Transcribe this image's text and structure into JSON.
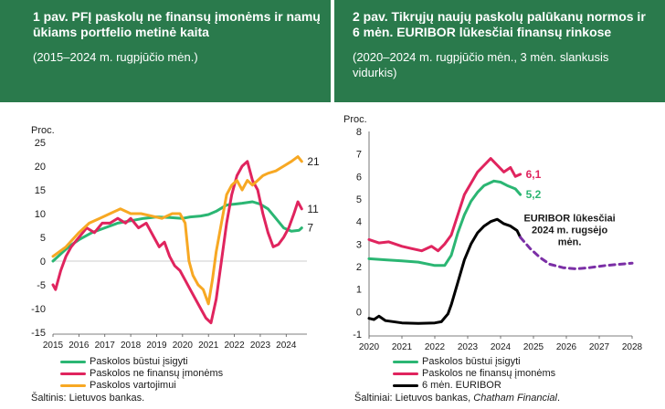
{
  "left_panel": {
    "title": "1 pav. PFĮ paskolų ne finansų įmonėms ir namų ūkiams portfelio metinė kaita",
    "subtitle": "(2015–2024 m. rugpjūčio mėn.)",
    "source": "Šaltinis: Lietuvos bankas."
  },
  "right_panel": {
    "title": "2 pav. Tikrųjų naujų paskolų palūkanų normos ir 6 mėn. EURIBOR lūkesčiai finansų rinkose",
    "subtitle": "(2020–2024 m. rugpjūčio mėn., 3 mėn. slankusis vidurkis)",
    "source_prefix": "Šaltiniai: Lietuvos bankas, ",
    "source_italic": "Chatham Financial",
    "source_suffix": "."
  },
  "chart_data": [
    {
      "type": "line",
      "ylabel": "Proc.",
      "ylim": [
        -15,
        25
      ],
      "yticks": [
        -15,
        -10,
        -5,
        0,
        5,
        10,
        15,
        20,
        25
      ],
      "xlim": [
        2015,
        2024.8
      ],
      "xticks": [
        2015,
        2016,
        2017,
        2018,
        2019,
        2020,
        2021,
        2022,
        2023,
        2024
      ],
      "colors": {
        "housing": "#2bb673",
        "business": "#e0245e",
        "consumer": "#f7a823"
      },
      "series": [
        {
          "key": "housing",
          "name": "Paskolos būstui įsigyti",
          "end_label": "7",
          "points": [
            [
              2015,
              0
            ],
            [
              2015.3,
              1.5
            ],
            [
              2015.6,
              3
            ],
            [
              2016,
              4.5
            ],
            [
              2016.5,
              6
            ],
            [
              2017,
              7
            ],
            [
              2017.5,
              8
            ],
            [
              2018,
              8.5
            ],
            [
              2018.5,
              9
            ],
            [
              2019,
              9.3
            ],
            [
              2019.5,
              9.2
            ],
            [
              2020,
              9
            ],
            [
              2020.3,
              9.3
            ],
            [
              2020.7,
              9.5
            ],
            [
              2021,
              9.8
            ],
            [
              2021.3,
              10.5
            ],
            [
              2021.7,
              11.8
            ],
            [
              2022,
              12
            ],
            [
              2022.3,
              12.2
            ],
            [
              2022.7,
              12.5
            ],
            [
              2023,
              12
            ],
            [
              2023.3,
              11
            ],
            [
              2023.6,
              9
            ],
            [
              2023.9,
              7
            ],
            [
              2024.2,
              6.3
            ],
            [
              2024.5,
              6.5
            ],
            [
              2024.6,
              7
            ]
          ]
        },
        {
          "key": "business",
          "name": "Paskolos ne finansų įmonėms",
          "end_label": "11",
          "points": [
            [
              2015,
              -5
            ],
            [
              2015.1,
              -6
            ],
            [
              2015.3,
              -2
            ],
            [
              2015.5,
              1
            ],
            [
              2015.7,
              3
            ],
            [
              2016,
              5
            ],
            [
              2016.3,
              7
            ],
            [
              2016.6,
              6
            ],
            [
              2016.9,
              8
            ],
            [
              2017.2,
              8
            ],
            [
              2017.5,
              9
            ],
            [
              2017.8,
              8
            ],
            [
              2018,
              9
            ],
            [
              2018.3,
              7
            ],
            [
              2018.6,
              8
            ],
            [
              2018.9,
              5
            ],
            [
              2019.1,
              3
            ],
            [
              2019.3,
              4
            ],
            [
              2019.5,
              1
            ],
            [
              2019.7,
              -1
            ],
            [
              2019.9,
              -2
            ],
            [
              2020.1,
              -4
            ],
            [
              2020.3,
              -6
            ],
            [
              2020.5,
              -8
            ],
            [
              2020.7,
              -10
            ],
            [
              2020.9,
              -12
            ],
            [
              2021.1,
              -13
            ],
            [
              2021.3,
              -8
            ],
            [
              2021.5,
              0
            ],
            [
              2021.7,
              8
            ],
            [
              2021.9,
              14
            ],
            [
              2022.1,
              18
            ],
            [
              2022.3,
              20
            ],
            [
              2022.5,
              21
            ],
            [
              2022.6,
              19
            ],
            [
              2022.7,
              17
            ],
            [
              2022.9,
              15
            ],
            [
              2023.1,
              10
            ],
            [
              2023.3,
              6
            ],
            [
              2023.5,
              3
            ],
            [
              2023.7,
              3.5
            ],
            [
              2023.9,
              5
            ],
            [
              2024.1,
              7
            ],
            [
              2024.3,
              10
            ],
            [
              2024.45,
              12.5
            ],
            [
              2024.6,
              11
            ]
          ]
        },
        {
          "key": "consumer",
          "name": "Paskolos vartojimui",
          "end_label": "21",
          "points": [
            [
              2015,
              1
            ],
            [
              2015.5,
              3
            ],
            [
              2016,
              6
            ],
            [
              2016.4,
              8
            ],
            [
              2016.8,
              9
            ],
            [
              2017.2,
              10
            ],
            [
              2017.6,
              11
            ],
            [
              2018,
              10
            ],
            [
              2018.4,
              10
            ],
            [
              2018.8,
              9.5
            ],
            [
              2019.2,
              9
            ],
            [
              2019.6,
              10
            ],
            [
              2019.9,
              10
            ],
            [
              2020.1,
              8
            ],
            [
              2020.25,
              0
            ],
            [
              2020.4,
              -3
            ],
            [
              2020.6,
              -5
            ],
            [
              2020.8,
              -6
            ],
            [
              2021,
              -9
            ],
            [
              2021.15,
              -4
            ],
            [
              2021.3,
              2
            ],
            [
              2021.5,
              8
            ],
            [
              2021.7,
              14
            ],
            [
              2021.9,
              16
            ],
            [
              2022.1,
              17
            ],
            [
              2022.3,
              15
            ],
            [
              2022.5,
              17
            ],
            [
              2022.7,
              16
            ],
            [
              2022.9,
              17
            ],
            [
              2023.1,
              18
            ],
            [
              2023.3,
              18.5
            ],
            [
              2023.6,
              19
            ],
            [
              2023.9,
              20
            ],
            [
              2024.2,
              21
            ],
            [
              2024.45,
              22
            ],
            [
              2024.6,
              21
            ]
          ]
        }
      ]
    },
    {
      "type": "line",
      "ylabel": "Proc.",
      "ylim": [
        -1,
        8
      ],
      "yticks": [
        -1,
        0,
        1,
        2,
        3,
        4,
        5,
        6,
        7,
        8
      ],
      "xlim": [
        2020,
        2028
      ],
      "xticks": [
        2020,
        2021,
        2022,
        2023,
        2024,
        2025,
        2026,
        2027,
        2028
      ],
      "colors": {
        "housing": "#2bb673",
        "business": "#e0245e",
        "euribor": "#000000",
        "expectation": "#7b2fa6"
      },
      "annotation": "EURIBOR lūkesčiai 2024 m. rugsėjo mėn.",
      "series": [
        {
          "key": "housing",
          "name": "Paskolos būstui įsigyti",
          "end_label": "5,2",
          "points": [
            [
              2020,
              2.35
            ],
            [
              2020.5,
              2.3
            ],
            [
              2021,
              2.25
            ],
            [
              2021.5,
              2.2
            ],
            [
              2022,
              2.05
            ],
            [
              2022.3,
              2.05
            ],
            [
              2022.5,
              2.5
            ],
            [
              2022.7,
              3.5
            ],
            [
              2022.9,
              4.3
            ],
            [
              2023.1,
              4.9
            ],
            [
              2023.3,
              5.3
            ],
            [
              2023.5,
              5.6
            ],
            [
              2023.8,
              5.8
            ],
            [
              2024,
              5.75
            ],
            [
              2024.2,
              5.6
            ],
            [
              2024.45,
              5.45
            ],
            [
              2024.6,
              5.2
            ]
          ]
        },
        {
          "key": "business",
          "name": "Paskolos ne finansų įmonėms",
          "end_label": "6,1",
          "points": [
            [
              2020,
              3.2
            ],
            [
              2020.3,
              3.05
            ],
            [
              2020.6,
              3.1
            ],
            [
              2021,
              2.9
            ],
            [
              2021.3,
              2.8
            ],
            [
              2021.6,
              2.7
            ],
            [
              2021.9,
              2.9
            ],
            [
              2022.1,
              2.7
            ],
            [
              2022.3,
              3.0
            ],
            [
              2022.5,
              3.4
            ],
            [
              2022.7,
              4.3
            ],
            [
              2022.9,
              5.2
            ],
            [
              2023.1,
              5.7
            ],
            [
              2023.3,
              6.2
            ],
            [
              2023.5,
              6.5
            ],
            [
              2023.7,
              6.8
            ],
            [
              2023.9,
              6.5
            ],
            [
              2024.1,
              6.2
            ],
            [
              2024.3,
              6.4
            ],
            [
              2024.45,
              6.0
            ],
            [
              2024.6,
              6.1
            ]
          ]
        },
        {
          "key": "euribor",
          "name": "6 mėn. EURIBOR",
          "points": [
            [
              2020,
              -0.3
            ],
            [
              2020.15,
              -0.35
            ],
            [
              2020.3,
              -0.2
            ],
            [
              2020.5,
              -0.4
            ],
            [
              2021,
              -0.5
            ],
            [
              2021.5,
              -0.52
            ],
            [
              2022,
              -0.5
            ],
            [
              2022.2,
              -0.45
            ],
            [
              2022.4,
              -0.1
            ],
            [
              2022.5,
              0.3
            ],
            [
              2022.7,
              1.3
            ],
            [
              2022.9,
              2.3
            ],
            [
              2023.1,
              3.0
            ],
            [
              2023.3,
              3.5
            ],
            [
              2023.5,
              3.8
            ],
            [
              2023.7,
              4.0
            ],
            [
              2023.9,
              4.1
            ],
            [
              2024.1,
              3.9
            ],
            [
              2024.3,
              3.8
            ],
            [
              2024.5,
              3.6
            ],
            [
              2024.6,
              3.3
            ]
          ]
        },
        {
          "key": "expectation",
          "name": "EURIBOR lūkesčiai",
          "dashed": true,
          "points": [
            [
              2024.6,
              3.3
            ],
            [
              2024.9,
              2.8
            ],
            [
              2025.2,
              2.4
            ],
            [
              2025.5,
              2.1
            ],
            [
              2025.9,
              1.95
            ],
            [
              2026.3,
              1.9
            ],
            [
              2026.7,
              1.95
            ],
            [
              2027.2,
              2.05
            ],
            [
              2027.6,
              2.1
            ],
            [
              2028,
              2.15
            ]
          ]
        }
      ]
    }
  ]
}
